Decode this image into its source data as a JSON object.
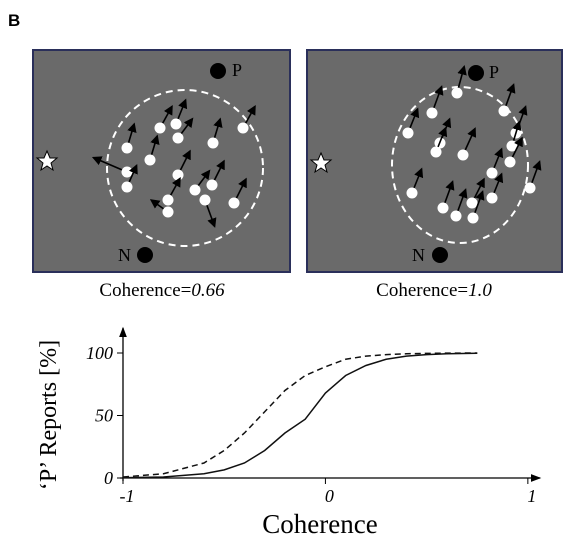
{
  "panel_label": "B",
  "stimuli": [
    {
      "target_p": "P",
      "target_n": "N",
      "caption_prefix": "Coherence=",
      "coherence": "0.66"
    },
    {
      "target_p": "P",
      "target_n": "N",
      "caption_prefix": "Coherence=",
      "coherence": "1.0"
    }
  ],
  "chart_data": {
    "type": "line",
    "ylabel": "‘P’ Reports [%]",
    "xlabel": "Coherence",
    "x": [
      -1,
      -0.8,
      -0.6,
      -0.5,
      -0.4,
      -0.3,
      -0.2,
      -0.1,
      0,
      0.1,
      0.2,
      0.3,
      0.4,
      0.5,
      0.6,
      0.75
    ],
    "series": [
      {
        "color": "#111111",
        "style": "solid",
        "values": [
          0.2,
          0.8,
          3.4,
          6.5,
          12,
          22,
          36,
          47,
          68,
          82,
          90,
          95,
          97.5,
          98.7,
          99.4,
          99.8
        ]
      },
      {
        "color": "#111111",
        "style": "dashed",
        "values": [
          0.8,
          3.4,
          12,
          22,
          36,
          53,
          70,
          82,
          89,
          95,
          97.5,
          98.7,
          99.4,
          99.7,
          99.9,
          100
        ]
      }
    ],
    "xlim": [
      -1,
      1.06
    ],
    "ylim": [
      0,
      120
    ],
    "xticks": [
      -1,
      0,
      1
    ],
    "yticks": [
      0,
      50,
      100
    ]
  }
}
